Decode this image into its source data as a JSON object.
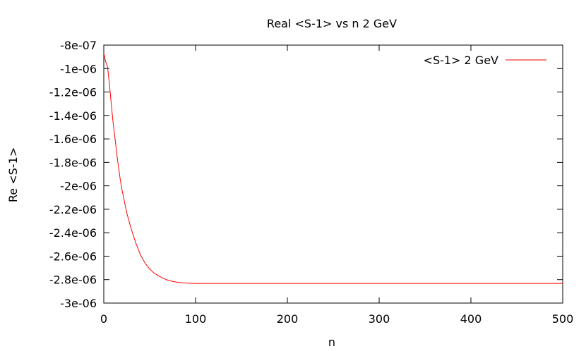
{
  "chart_data": {
    "type": "line",
    "title": "Real <S-1> vs n 2 GeV",
    "xlabel": "n",
    "ylabel": "Re <S-1>",
    "xlim": [
      0,
      500
    ],
    "ylim": [
      -3e-06,
      -8e-07
    ],
    "x_ticks": [
      0,
      100,
      200,
      300,
      400,
      500
    ],
    "x_tick_labels": [
      "0",
      "100",
      "200",
      "300",
      "400",
      "500"
    ],
    "y_ticks": [
      -8e-07,
      -1e-06,
      -1.2e-06,
      -1.4e-06,
      -1.6e-06,
      -1.8e-06,
      -2e-06,
      -2.2e-06,
      -2.4e-06,
      -2.6e-06,
      -2.8e-06,
      -3e-06
    ],
    "y_tick_labels": [
      "-8e-07",
      "-1e-06",
      "-1.2e-06",
      "-1.4e-06",
      "-1.6e-06",
      "-1.8e-06",
      "-2e-06",
      "-2.2e-06",
      "-2.4e-06",
      "-2.6e-06",
      "-2.8e-06",
      "-3e-06"
    ],
    "grid": false,
    "legend_position": "top-right",
    "series": [
      {
        "name": "<S-1> 2  GeV",
        "color": "#ff0000",
        "x": [
          0,
          2,
          4,
          6,
          8,
          10,
          12,
          15,
          18,
          20,
          25,
          30,
          35,
          40,
          45,
          50,
          55,
          60,
          65,
          70,
          75,
          80,
          85,
          90,
          95,
          100,
          110,
          120,
          150,
          200,
          250,
          300,
          350,
          400,
          450,
          500
        ],
        "y": [
          -8.7e-07,
          -9.4e-07,
          -9.8e-07,
          -1.12e-06,
          -1.29e-06,
          -1.45e-06,
          -1.58e-06,
          -1.78e-06,
          -1.95e-06,
          -2.04e-06,
          -2.23e-06,
          -2.37e-06,
          -2.49e-06,
          -2.59e-06,
          -2.66e-06,
          -2.71e-06,
          -2.745e-06,
          -2.77e-06,
          -2.79e-06,
          -2.805e-06,
          -2.815e-06,
          -2.822e-06,
          -2.826e-06,
          -2.829e-06,
          -2.831e-06,
          -2.832e-06,
          -2.832e-06,
          -2.832e-06,
          -2.832e-06,
          -2.832e-06,
          -2.832e-06,
          -2.832e-06,
          -2.832e-06,
          -2.832e-06,
          -2.832e-06,
          -2.832e-06
        ]
      }
    ]
  }
}
